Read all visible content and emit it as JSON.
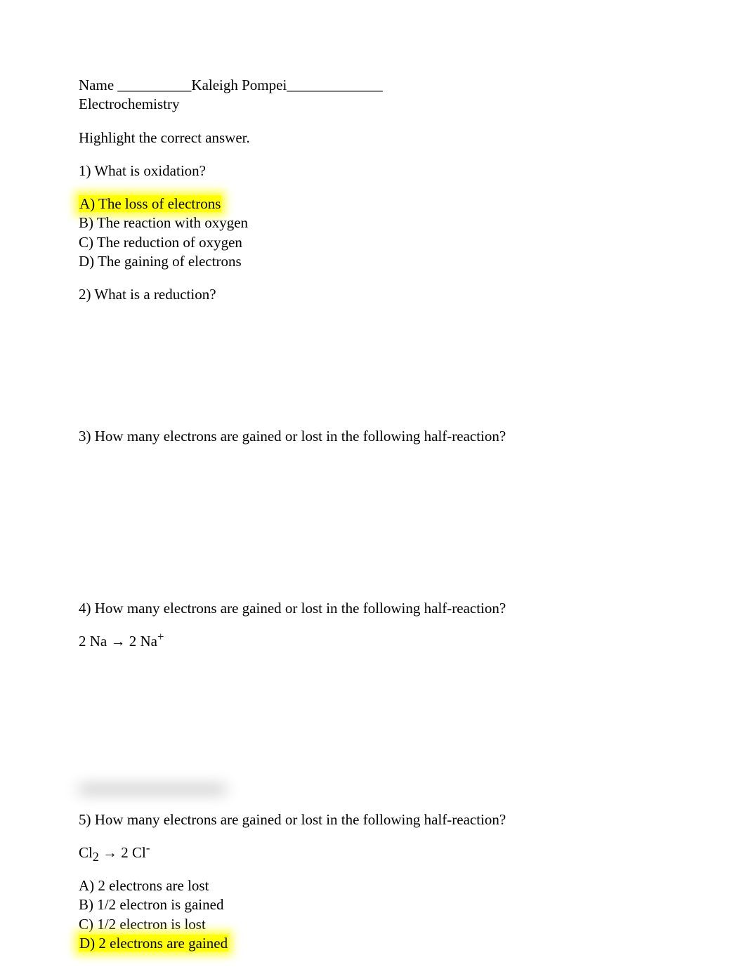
{
  "header": {
    "name_label": "Name __________",
    "student_name": "Kaleigh Pompei_____________",
    "subject": "Electrochemistry",
    "instruction": "Highlight the correct answer."
  },
  "q1": {
    "prompt": "1) What is oxidation?",
    "a": "A) The loss of electrons",
    "b": "B) The reaction with oxygen",
    "c": "C) The reduction of oxygen",
    "d": "D) The gaining of electrons"
  },
  "q2": {
    "prompt": "2) What is a reduction?"
  },
  "q3": {
    "prompt": "3) How many electrons are gained or lost in the following half-reaction?"
  },
  "q4": {
    "prompt": "4) How many electrons are gained or lost in the following half-reaction?",
    "equation_left": "2 Na",
    "equation_arrow": "→",
    "equation_right_base": "2 Na",
    "equation_right_sup": "+"
  },
  "q5": {
    "prompt": "5) How many electrons are gained or lost in the following half-reaction?",
    "eq_left_base": "Cl",
    "eq_left_sub": "2",
    "eq_arrow": "→",
    "eq_right_base": "2 Cl",
    "eq_right_sup": "-",
    "a": "A) 2 electrons are lost",
    "b": "B) 1/2 electron is gained",
    "c": "C) 1/2 electron is lost",
    "d": "D) 2 electrons are gained"
  },
  "colors": {
    "highlight": "#ffff00",
    "text": "#000000",
    "background": "#ffffff"
  }
}
